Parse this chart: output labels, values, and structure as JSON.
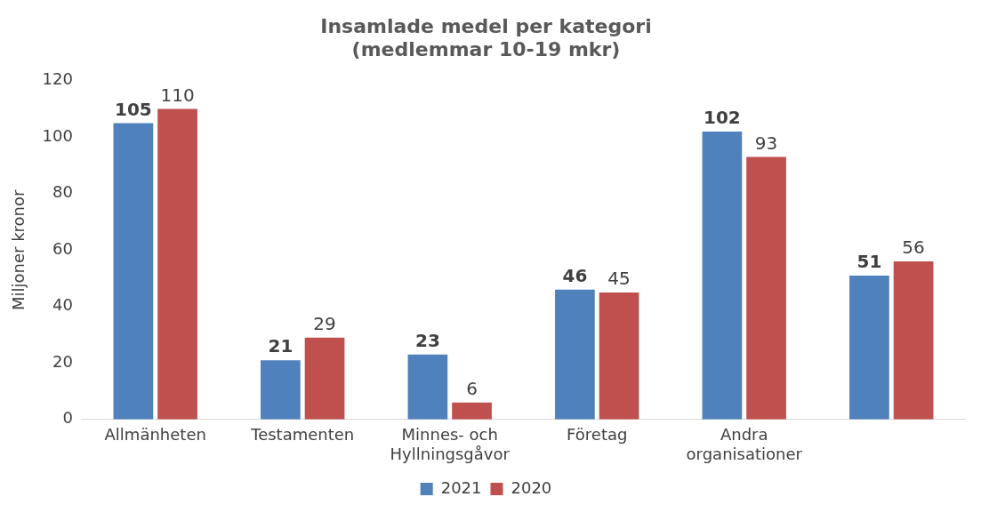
{
  "chart_data": {
    "type": "bar",
    "title": "Insamlade medel per kategori\n(medlemmar 10-19 mkr)",
    "ylabel": "Miljoner kronor",
    "categories": [
      "Allmänheten",
      "Testamenten",
      "Minnes- och Hyllningsgåvor",
      "Företag",
      "Andra organisationer",
      null
    ],
    "series": [
      {
        "name": "2021",
        "color": "#4f81bd",
        "values": [
          105,
          21,
          23,
          46,
          102,
          51
        ]
      },
      {
        "name": "2020",
        "color": "#c0504d",
        "values": [
          110,
          29,
          6,
          45,
          93,
          56
        ]
      }
    ],
    "ylim": [
      0,
      120
    ],
    "yticks": [
      0,
      20,
      40,
      60,
      80,
      100,
      120
    ],
    "grid": false,
    "legend": "bottom",
    "data_labels": true
  }
}
